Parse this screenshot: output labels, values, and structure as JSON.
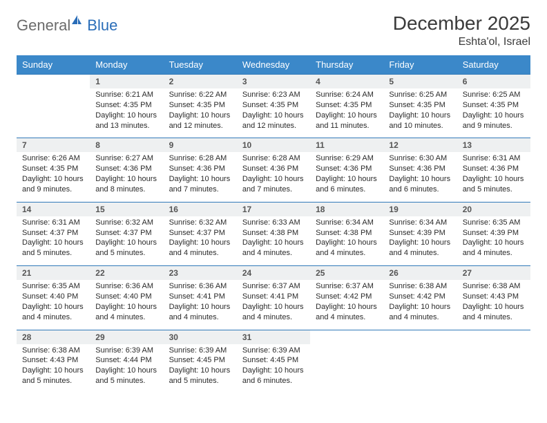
{
  "logo": {
    "text1": "General",
    "text2": "Blue"
  },
  "title": "December 2025",
  "location": "Eshta'ol, Israel",
  "colors": {
    "header_bg": "#3b88c9",
    "header_text": "#ffffff",
    "daynum_bg": "#eef0f1",
    "row_border": "#3079b8",
    "body_text": "#2a2a2a",
    "title_text": "#3a3a3a",
    "logo_gray": "#6b6b6b",
    "logo_blue": "#2a6db8"
  },
  "weekdays": [
    "Sunday",
    "Monday",
    "Tuesday",
    "Wednesday",
    "Thursday",
    "Friday",
    "Saturday"
  ],
  "weeks": [
    [
      {
        "n": "",
        "sr": "",
        "ss": "",
        "dl": ""
      },
      {
        "n": "1",
        "sr": "Sunrise: 6:21 AM",
        "ss": "Sunset: 4:35 PM",
        "dl": "Daylight: 10 hours and 13 minutes."
      },
      {
        "n": "2",
        "sr": "Sunrise: 6:22 AM",
        "ss": "Sunset: 4:35 PM",
        "dl": "Daylight: 10 hours and 12 minutes."
      },
      {
        "n": "3",
        "sr": "Sunrise: 6:23 AM",
        "ss": "Sunset: 4:35 PM",
        "dl": "Daylight: 10 hours and 12 minutes."
      },
      {
        "n": "4",
        "sr": "Sunrise: 6:24 AM",
        "ss": "Sunset: 4:35 PM",
        "dl": "Daylight: 10 hours and 11 minutes."
      },
      {
        "n": "5",
        "sr": "Sunrise: 6:25 AM",
        "ss": "Sunset: 4:35 PM",
        "dl": "Daylight: 10 hours and 10 minutes."
      },
      {
        "n": "6",
        "sr": "Sunrise: 6:25 AM",
        "ss": "Sunset: 4:35 PM",
        "dl": "Daylight: 10 hours and 9 minutes."
      }
    ],
    [
      {
        "n": "7",
        "sr": "Sunrise: 6:26 AM",
        "ss": "Sunset: 4:35 PM",
        "dl": "Daylight: 10 hours and 9 minutes."
      },
      {
        "n": "8",
        "sr": "Sunrise: 6:27 AM",
        "ss": "Sunset: 4:36 PM",
        "dl": "Daylight: 10 hours and 8 minutes."
      },
      {
        "n": "9",
        "sr": "Sunrise: 6:28 AM",
        "ss": "Sunset: 4:36 PM",
        "dl": "Daylight: 10 hours and 7 minutes."
      },
      {
        "n": "10",
        "sr": "Sunrise: 6:28 AM",
        "ss": "Sunset: 4:36 PM",
        "dl": "Daylight: 10 hours and 7 minutes."
      },
      {
        "n": "11",
        "sr": "Sunrise: 6:29 AM",
        "ss": "Sunset: 4:36 PM",
        "dl": "Daylight: 10 hours and 6 minutes."
      },
      {
        "n": "12",
        "sr": "Sunrise: 6:30 AM",
        "ss": "Sunset: 4:36 PM",
        "dl": "Daylight: 10 hours and 6 minutes."
      },
      {
        "n": "13",
        "sr": "Sunrise: 6:31 AM",
        "ss": "Sunset: 4:36 PM",
        "dl": "Daylight: 10 hours and 5 minutes."
      }
    ],
    [
      {
        "n": "14",
        "sr": "Sunrise: 6:31 AM",
        "ss": "Sunset: 4:37 PM",
        "dl": "Daylight: 10 hours and 5 minutes."
      },
      {
        "n": "15",
        "sr": "Sunrise: 6:32 AM",
        "ss": "Sunset: 4:37 PM",
        "dl": "Daylight: 10 hours and 5 minutes."
      },
      {
        "n": "16",
        "sr": "Sunrise: 6:32 AM",
        "ss": "Sunset: 4:37 PM",
        "dl": "Daylight: 10 hours and 4 minutes."
      },
      {
        "n": "17",
        "sr": "Sunrise: 6:33 AM",
        "ss": "Sunset: 4:38 PM",
        "dl": "Daylight: 10 hours and 4 minutes."
      },
      {
        "n": "18",
        "sr": "Sunrise: 6:34 AM",
        "ss": "Sunset: 4:38 PM",
        "dl": "Daylight: 10 hours and 4 minutes."
      },
      {
        "n": "19",
        "sr": "Sunrise: 6:34 AM",
        "ss": "Sunset: 4:39 PM",
        "dl": "Daylight: 10 hours and 4 minutes."
      },
      {
        "n": "20",
        "sr": "Sunrise: 6:35 AM",
        "ss": "Sunset: 4:39 PM",
        "dl": "Daylight: 10 hours and 4 minutes."
      }
    ],
    [
      {
        "n": "21",
        "sr": "Sunrise: 6:35 AM",
        "ss": "Sunset: 4:40 PM",
        "dl": "Daylight: 10 hours and 4 minutes."
      },
      {
        "n": "22",
        "sr": "Sunrise: 6:36 AM",
        "ss": "Sunset: 4:40 PM",
        "dl": "Daylight: 10 hours and 4 minutes."
      },
      {
        "n": "23",
        "sr": "Sunrise: 6:36 AM",
        "ss": "Sunset: 4:41 PM",
        "dl": "Daylight: 10 hours and 4 minutes."
      },
      {
        "n": "24",
        "sr": "Sunrise: 6:37 AM",
        "ss": "Sunset: 4:41 PM",
        "dl": "Daylight: 10 hours and 4 minutes."
      },
      {
        "n": "25",
        "sr": "Sunrise: 6:37 AM",
        "ss": "Sunset: 4:42 PM",
        "dl": "Daylight: 10 hours and 4 minutes."
      },
      {
        "n": "26",
        "sr": "Sunrise: 6:38 AM",
        "ss": "Sunset: 4:42 PM",
        "dl": "Daylight: 10 hours and 4 minutes."
      },
      {
        "n": "27",
        "sr": "Sunrise: 6:38 AM",
        "ss": "Sunset: 4:43 PM",
        "dl": "Daylight: 10 hours and 4 minutes."
      }
    ],
    [
      {
        "n": "28",
        "sr": "Sunrise: 6:38 AM",
        "ss": "Sunset: 4:43 PM",
        "dl": "Daylight: 10 hours and 5 minutes."
      },
      {
        "n": "29",
        "sr": "Sunrise: 6:39 AM",
        "ss": "Sunset: 4:44 PM",
        "dl": "Daylight: 10 hours and 5 minutes."
      },
      {
        "n": "30",
        "sr": "Sunrise: 6:39 AM",
        "ss": "Sunset: 4:45 PM",
        "dl": "Daylight: 10 hours and 5 minutes."
      },
      {
        "n": "31",
        "sr": "Sunrise: 6:39 AM",
        "ss": "Sunset: 4:45 PM",
        "dl": "Daylight: 10 hours and 6 minutes."
      },
      {
        "n": "",
        "sr": "",
        "ss": "",
        "dl": ""
      },
      {
        "n": "",
        "sr": "",
        "ss": "",
        "dl": ""
      },
      {
        "n": "",
        "sr": "",
        "ss": "",
        "dl": ""
      }
    ]
  ]
}
